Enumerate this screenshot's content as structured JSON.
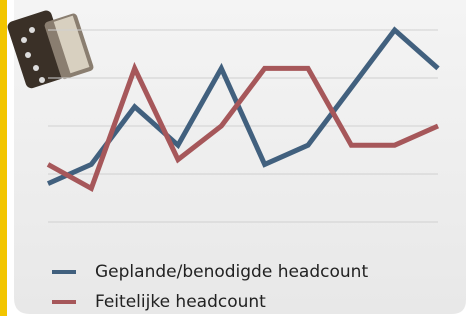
{
  "chart_data": {
    "type": "line",
    "categories": [
      null,
      null,
      null,
      null,
      null,
      null,
      null,
      null,
      null,
      null
    ],
    "series": [
      {
        "name": "Geplande/benodigde headcount",
        "color": "#41607e",
        "values": [
          0.8,
          1.2,
          2.4,
          1.6,
          3.2,
          1.2,
          1.6,
          2.8,
          4.0,
          3.2
        ]
      },
      {
        "name": "Feitelijke headcount",
        "color": "#a6575a",
        "values": [
          1.2,
          0.7,
          3.2,
          1.3,
          2.0,
          3.2,
          3.2,
          1.6,
          1.6,
          2.0
        ]
      }
    ],
    "ylim": [
      0,
      4
    ],
    "yticks": [
      0,
      1,
      2,
      3,
      4
    ],
    "grid": true
  }
}
